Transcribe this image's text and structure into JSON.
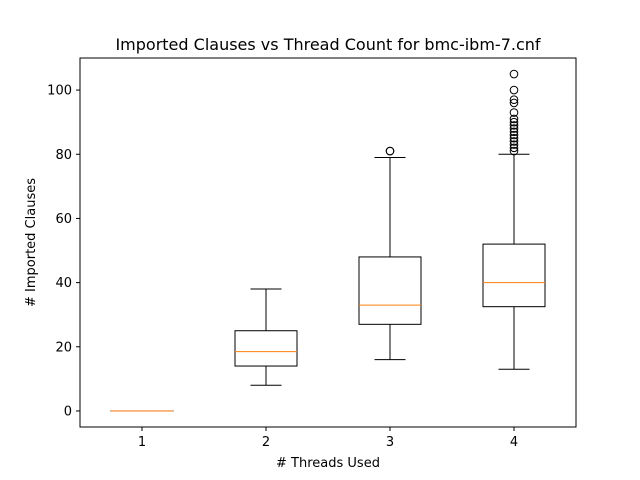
{
  "chart_data": {
    "type": "box",
    "title": "Imported Clauses vs Thread Count for bmc-ibm-7.cnf",
    "xlabel": "# Threads Used",
    "ylabel": "# Imported Clauses",
    "categories": [
      "1",
      "2",
      "3",
      "4"
    ],
    "ylim": [
      -5,
      110
    ],
    "yticks": [
      0,
      20,
      40,
      60,
      80,
      100
    ],
    "grid": false,
    "boxes": [
      {
        "category": "1",
        "whisker_low": 0,
        "q1": 0,
        "median": 0,
        "q3": 0,
        "whisker_high": 0,
        "outliers": []
      },
      {
        "category": "2",
        "whisker_low": 8,
        "q1": 14,
        "median": 18.5,
        "q3": 25,
        "whisker_high": 38,
        "outliers": []
      },
      {
        "category": "3",
        "whisker_low": 16,
        "q1": 27,
        "median": 33,
        "q3": 48,
        "whisker_high": 79,
        "outliers": [
          81,
          81
        ]
      },
      {
        "category": "4",
        "whisker_low": 13,
        "q1": 32.5,
        "median": 40,
        "q3": 52,
        "whisker_high": 80,
        "outliers": [
          81,
          82,
          83,
          84,
          85,
          86,
          87,
          88,
          89,
          90,
          91,
          93,
          96,
          97,
          100,
          105
        ]
      }
    ],
    "colors": {
      "box": "#000000",
      "median": "#ff7f0e"
    }
  }
}
